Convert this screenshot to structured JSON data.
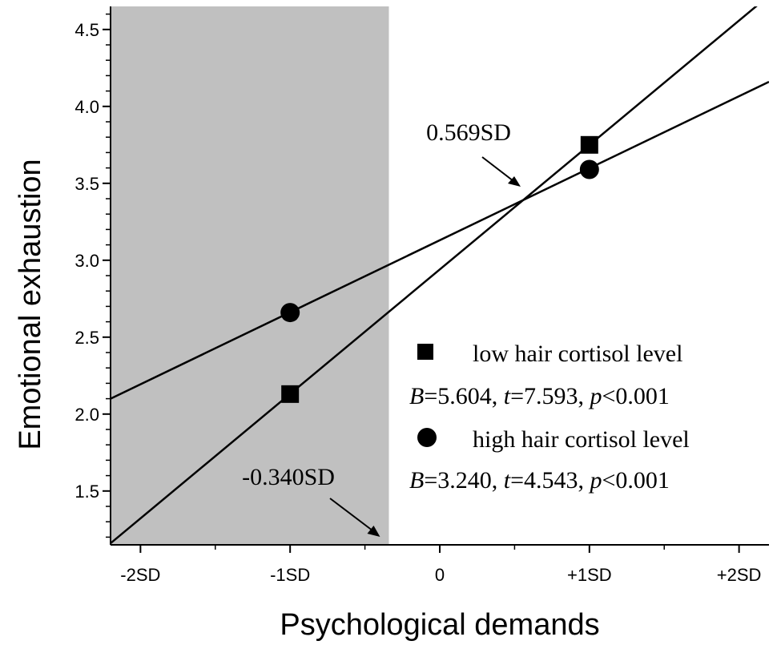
{
  "chart_data": {
    "type": "line",
    "xlabel": "Psychological demands",
    "ylabel": "Emotional exhaustion",
    "xlim": [
      -2.2,
      2.2
    ],
    "ylim": [
      1.15,
      4.65
    ],
    "x_ticks": [
      {
        "value": -2,
        "label": "-2SD"
      },
      {
        "value": -1,
        "label": "-1SD"
      },
      {
        "value": 0,
        "label": "0"
      },
      {
        "value": 1,
        "label": "+1SD"
      },
      {
        "value": 2,
        "label": "+2SD"
      }
    ],
    "y_ticks": [
      {
        "value": 1.5,
        "label": "1.5"
      },
      {
        "value": 2.0,
        "label": "2.0"
      },
      {
        "value": 2.5,
        "label": "2.5"
      },
      {
        "value": 3.0,
        "label": "3.0"
      },
      {
        "value": 3.5,
        "label": "3.5"
      },
      {
        "value": 4.0,
        "label": "4.0"
      },
      {
        "value": 4.5,
        "label": "4.5"
      }
    ],
    "shaded_region": {
      "x_from": -2.2,
      "x_to": -0.34,
      "color": "#c0c0c0"
    },
    "series": [
      {
        "name": "low hair cortisol level",
        "marker": "square",
        "points": [
          {
            "x": -1,
            "y": 2.13
          },
          {
            "x": 1,
            "y": 3.75
          }
        ],
        "line": {
          "x": [
            -2.2,
            2.2
          ],
          "y": [
            1.16,
            4.72
          ]
        }
      },
      {
        "name": "high hair cortisol level",
        "marker": "circle",
        "points": [
          {
            "x": -1,
            "y": 2.66
          },
          {
            "x": 1,
            "y": 3.59
          }
        ],
        "line": {
          "x": [
            -2.2,
            2.2
          ],
          "y": [
            2.1,
            4.16
          ]
        }
      }
    ],
    "legend": {
      "placement": "bottom-right",
      "entries": [
        {
          "label": "low hair cortisol level",
          "stats": {
            "B_label": "B",
            "B": "=5.604, ",
            "t_label": "t",
            "t": "=7.593, ",
            "p_label": "p",
            "p": "<0.001"
          }
        },
        {
          "label": "high hair cortisol level",
          "stats": {
            "B_label": "B",
            "B": "=3.240, ",
            "t_label": "t",
            "t": "=4.543, ",
            "p_label": "p",
            "p": "<0.001"
          }
        }
      ]
    },
    "annotations": [
      {
        "text": "0.569SD",
        "points_to_x": 0.569
      },
      {
        "text": "-0.340SD",
        "points_to_x": -0.34
      }
    ],
    "grid": false
  }
}
